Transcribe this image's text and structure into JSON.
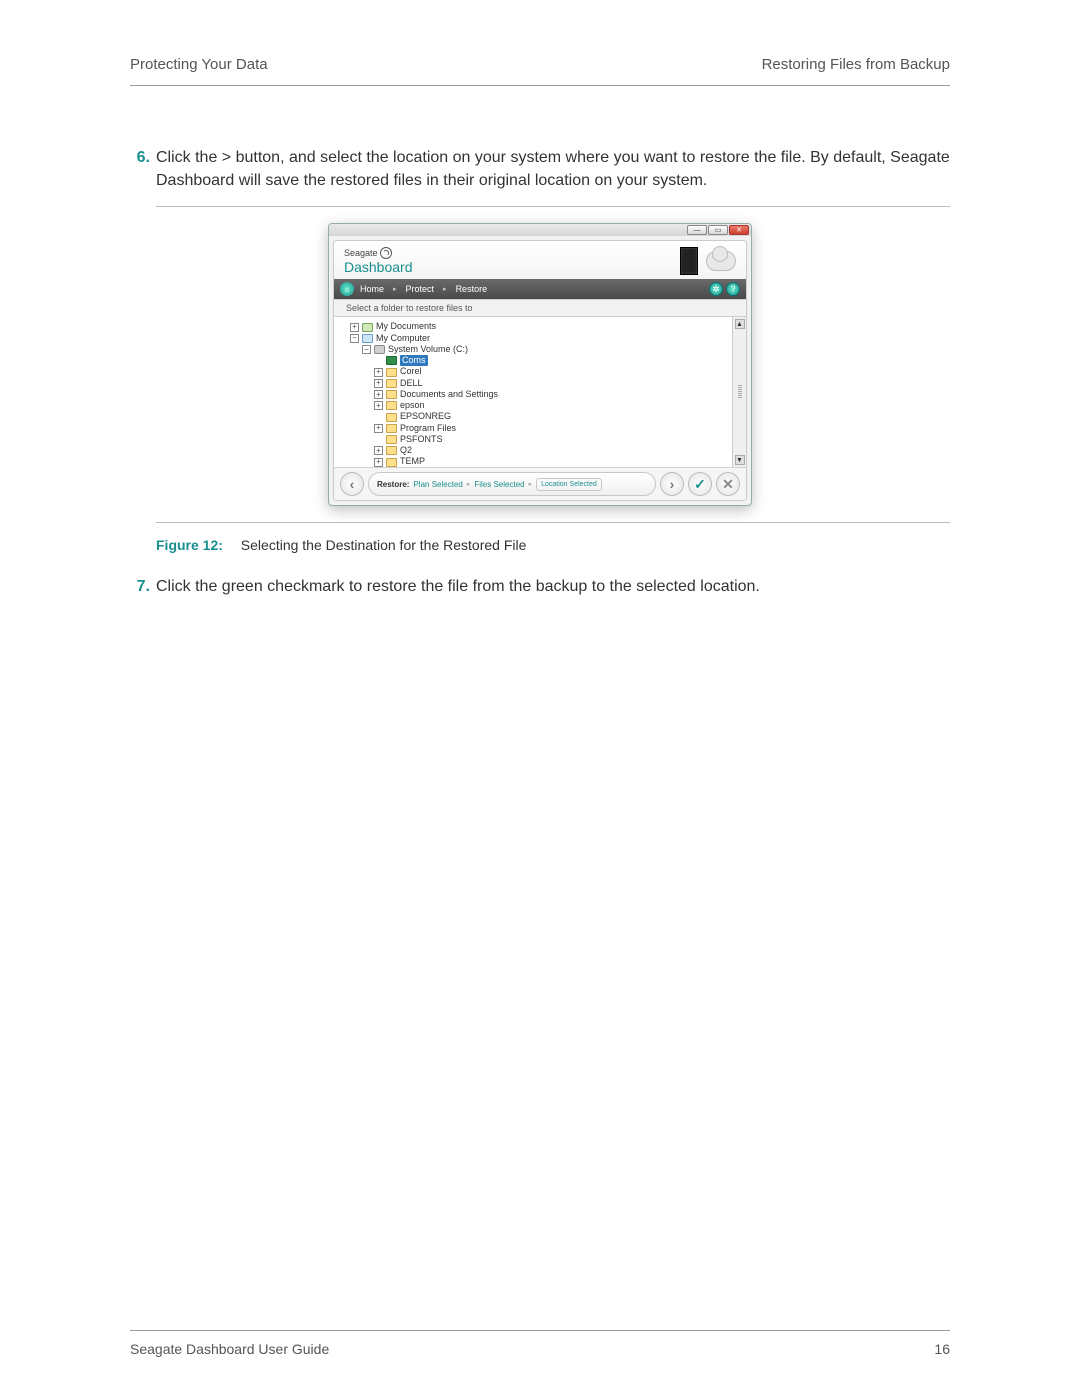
{
  "header": {
    "left": "Protecting Your Data",
    "right": "Restoring Files from Backup"
  },
  "steps": {
    "s6": {
      "num": "6.",
      "text": "Click the > button, and select the location on your system where you want to restore the file. By default, Seagate Dashboard will save the restored files in their original location on your system."
    },
    "s7": {
      "num": "7.",
      "text": "Click the green checkmark to restore the file from the backup to the selected location."
    }
  },
  "figure": {
    "label": "Figure 12:",
    "caption": "Selecting the Destination for the Restored File"
  },
  "footer": {
    "title": "Seagate Dashboard User Guide",
    "page": "16"
  },
  "app": {
    "brand": {
      "company": "Seagate",
      "product": "Dashboard"
    },
    "window_buttons": {
      "min": "—",
      "max": "▭",
      "close": "✕"
    },
    "breadcrumb": {
      "home": "Home",
      "protect": "Protect",
      "restore": "Restore",
      "settings_icon": "✲",
      "help_icon": "?"
    },
    "subtitle": "Select a folder to restore files to",
    "tree": {
      "rows": [
        {
          "exp": "+",
          "ico": "docs",
          "indent": 1,
          "label": "My Documents",
          "sel": false
        },
        {
          "exp": "−",
          "ico": "comp",
          "indent": 1,
          "label": "My Computer",
          "sel": false
        },
        {
          "exp": "−",
          "ico": "drive",
          "indent": 2,
          "label": "System Volume (C:)",
          "sel": false
        },
        {
          "exp": "",
          "ico": "sel",
          "indent": 3,
          "label": "Coms",
          "sel": true
        },
        {
          "exp": "+",
          "ico": "fold",
          "indent": 3,
          "label": "Corel",
          "sel": false
        },
        {
          "exp": "+",
          "ico": "fold",
          "indent": 3,
          "label": "DELL",
          "sel": false
        },
        {
          "exp": "+",
          "ico": "fold",
          "indent": 3,
          "label": "Documents and Settings",
          "sel": false
        },
        {
          "exp": "+",
          "ico": "fold",
          "indent": 3,
          "label": "epson",
          "sel": false
        },
        {
          "exp": "",
          "ico": "fold",
          "indent": 3,
          "label": "EPSONREG",
          "sel": false
        },
        {
          "exp": "+",
          "ico": "fold",
          "indent": 3,
          "label": "Program Files",
          "sel": false
        },
        {
          "exp": "",
          "ico": "fold",
          "indent": 3,
          "label": "PSFONTS",
          "sel": false
        },
        {
          "exp": "+",
          "ico": "fold",
          "indent": 3,
          "label": "Q2",
          "sel": false
        },
        {
          "exp": "+",
          "ico": "fold",
          "indent": 3,
          "label": "TEMP",
          "sel": false
        }
      ],
      "scroll_up": "▲",
      "scroll_down": "▼"
    },
    "footer": {
      "back": "‹",
      "forward": "›",
      "ok": "✓",
      "cancel": "✕",
      "restore_label": "Restore:",
      "plan": "Plan Selected",
      "files": "Files Selected",
      "location": "Location Selected"
    }
  },
  "colors": {
    "accent": "#1a8f8f",
    "header_rule": "#999999"
  }
}
